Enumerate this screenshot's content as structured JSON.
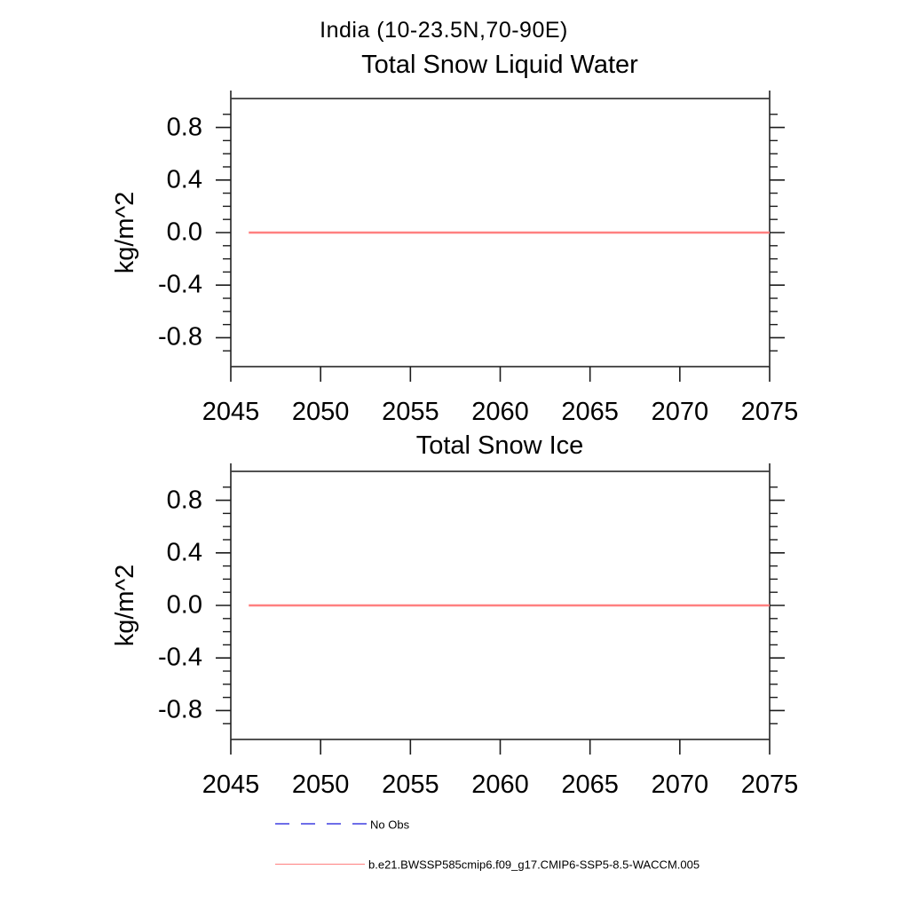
{
  "page": {
    "main_title": "India (10-23.5N,70-90E)"
  },
  "chart_data": [
    {
      "type": "line",
      "title": "Total Snow Liquid Water",
      "ylabel": "kg/m^2",
      "xlim": [
        2045,
        2075
      ],
      "ylim": [
        -1.02,
        1.02
      ],
      "xticks": [
        2045,
        2050,
        2055,
        2060,
        2065,
        2070,
        2075
      ],
      "ytick_values": [
        0.8,
        0.4,
        0.0,
        -0.4,
        -0.8
      ],
      "ytick_labels": [
        "0.8",
        "0.4",
        "0.0",
        "-0.4",
        "-0.8"
      ],
      "yminor_step": 0.1,
      "yminor_range": [
        -0.9,
        0.9
      ],
      "grid": false,
      "legend_position": "below",
      "series": [
        {
          "name": "b.e21.BWSSP585cmip6.f09_g17.CMIP6-SSP5-8.5-WACCM.005",
          "color": "#ff8080",
          "x": [
            2046,
            2075
          ],
          "y": [
            0.0,
            0.0
          ]
        }
      ]
    },
    {
      "type": "line",
      "title": "Total Snow Ice",
      "ylabel": "kg/m^2",
      "xlim": [
        2045,
        2075
      ],
      "ylim": [
        -1.02,
        1.02
      ],
      "xticks": [
        2045,
        2050,
        2055,
        2060,
        2065,
        2070,
        2075
      ],
      "ytick_values": [
        0.8,
        0.4,
        0.0,
        -0.4,
        -0.8
      ],
      "ytick_labels": [
        "0.8",
        "0.4",
        "0.0",
        "-0.4",
        "-0.8"
      ],
      "yminor_step": 0.1,
      "yminor_range": [
        -0.9,
        0.9
      ],
      "grid": false,
      "legend_position": "below",
      "series": [
        {
          "name": "b.e21.BWSSP585cmip6.f09_g17.CMIP6-SSP5-8.5-WACCM.005",
          "color": "#ff8080",
          "x": [
            2046,
            2075
          ],
          "y": [
            0.0,
            0.0
          ]
        }
      ]
    }
  ],
  "legend": [
    {
      "label": "No Obs",
      "color": "#6e6ee8",
      "style": "dashed"
    },
    {
      "label": "b.e21.BWSSP585cmip6.f09_g17.CMIP6-SSP5-8.5-WACCM.005",
      "color": "#ff8080",
      "style": "solid"
    }
  ],
  "colors": {
    "frame": "#3a3a3a",
    "tick": "#1c1c1c",
    "text": "#000000",
    "background": "#ffffff"
  }
}
